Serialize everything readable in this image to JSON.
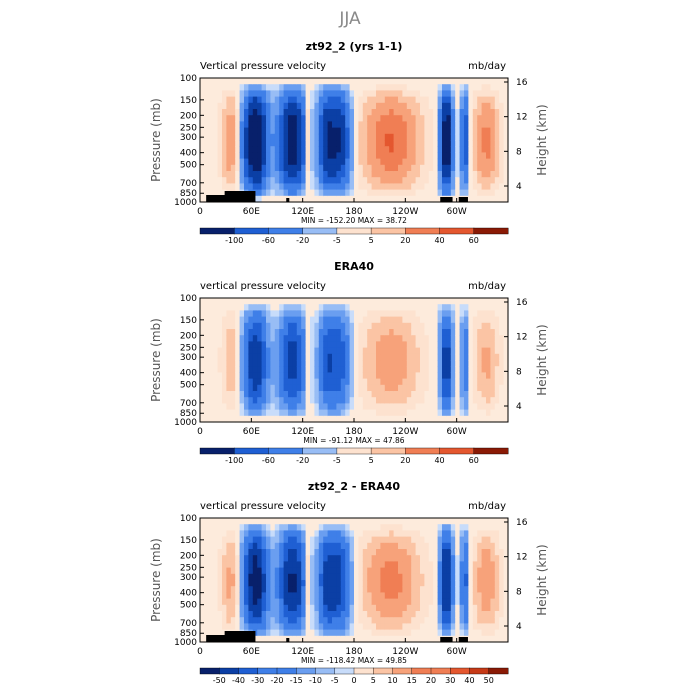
{
  "season": "JJA",
  "colors": {
    "blue_scale": [
      "#08206b",
      "#0b3fa5",
      "#1f5fd3",
      "#3f7fe8",
      "#6a9ef0",
      "#98bdf5",
      "#c8dcfa"
    ],
    "red_scale": [
      "#fde2cf",
      "#fbc4a4",
      "#f7a27a",
      "#f07e54",
      "#e4572f",
      "#c63a17",
      "#8a1a05"
    ],
    "neutral": "#fdebdc",
    "topography": "#000000"
  },
  "chart_data": [
    {
      "type": "heatmap",
      "title": "zt92_2 (yrs 1-1)",
      "left_label": "Vertical pressure velocity",
      "right_label": "mb/day",
      "ylabel": "Pressure (mb)",
      "ylabel_right": "Height (km)",
      "x_ticks": [
        "0",
        "60E",
        "120E",
        "180",
        "120W",
        "60W"
      ],
      "y_ticks": [
        "100",
        "150",
        "200",
        "250",
        "300",
        "400",
        "500",
        "700",
        "850",
        "1000"
      ],
      "y_right_ticks": [
        "16",
        "12",
        "8",
        "4"
      ],
      "stats": "MIN = -152.20   MAX =  38.72",
      "colorbar": [
        "-100",
        "-60",
        "-20",
        "-5",
        "5",
        "20",
        "40",
        "60"
      ],
      "scale": 1.0,
      "has_topography": true
    },
    {
      "type": "heatmap",
      "title": "ERA40",
      "left_label": "vertical pressure velocity",
      "right_label": "mb/day",
      "ylabel": "Pressure (mb)",
      "ylabel_right": "Height (km)",
      "x_ticks": [
        "0",
        "60E",
        "120E",
        "180",
        "120W",
        "60W"
      ],
      "y_ticks": [
        "100",
        "150",
        "200",
        "250",
        "300",
        "400",
        "500",
        "700",
        "850",
        "1000"
      ],
      "y_right_ticks": [
        "16",
        "12",
        "8",
        "4"
      ],
      "stats": "MIN = -91.12   MAX =  47.86",
      "colorbar": [
        "-100",
        "-60",
        "-20",
        "-5",
        "5",
        "20",
        "40",
        "60"
      ],
      "scale": 0.6,
      "has_topography": false
    },
    {
      "type": "heatmap",
      "title": "zt92_2 - ERA40",
      "left_label": "vertical pressure velocity",
      "right_label": "mb/day",
      "ylabel": "Pressure (mb)",
      "ylabel_right": "Height (km)",
      "x_ticks": [
        "0",
        "60E",
        "120E",
        "180",
        "120W",
        "60W"
      ],
      "y_ticks": [
        "100",
        "150",
        "200",
        "250",
        "300",
        "400",
        "500",
        "700",
        "850",
        "1000"
      ],
      "y_right_ticks": [
        "16",
        "12",
        "8",
        "4"
      ],
      "stats": "MIN = -118.42   MAX =  49.85",
      "colorbar": [
        "-50",
        "-40",
        "-30",
        "-20",
        "-15",
        "-10",
        "-5",
        "0",
        "5",
        "10",
        "15",
        "20",
        "30",
        "40",
        "50"
      ],
      "scale": 0.8,
      "has_topography": true
    }
  ]
}
